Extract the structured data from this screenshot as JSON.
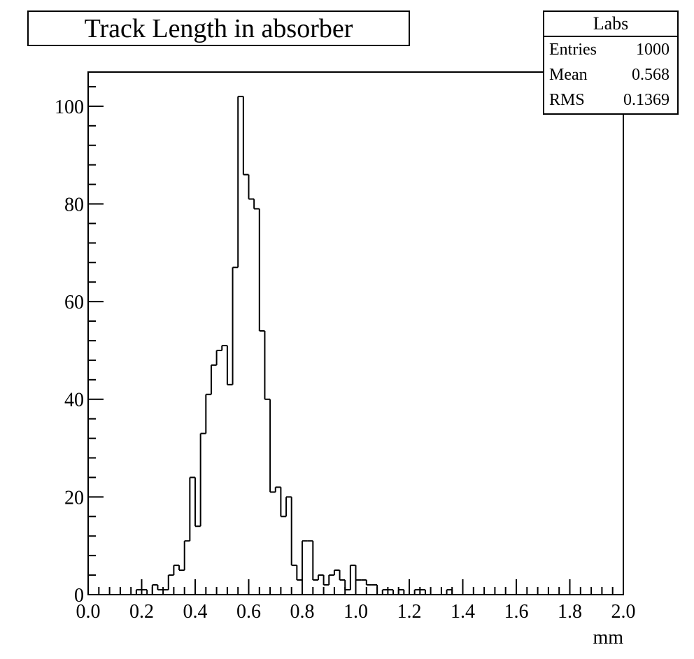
{
  "chart_data": {
    "type": "histogram",
    "title": "Track Length in absorber",
    "xlabel": "mm",
    "ylabel": "",
    "xlim": [
      0.0,
      2.0
    ],
    "ylim": [
      0,
      107
    ],
    "xticks": [
      "0.0",
      "0.2",
      "0.4",
      "0.6",
      "0.8",
      "1.0",
      "1.2",
      "1.4",
      "1.6",
      "1.8",
      "2.0"
    ],
    "yticks": [
      "0",
      "20",
      "40",
      "60",
      "80",
      "100"
    ],
    "bin_width": 0.02,
    "bin_start": 0.0,
    "values": [
      0,
      0,
      0,
      0,
      0,
      0,
      0,
      0,
      0,
      1,
      1,
      0,
      2,
      1,
      1,
      4,
      6,
      5,
      11,
      24,
      14,
      33,
      41,
      47,
      50,
      51,
      43,
      67,
      102,
      86,
      81,
      79,
      54,
      40,
      21,
      22,
      16,
      20,
      6,
      3,
      11,
      11,
      3,
      4,
      2,
      4,
      5,
      3,
      1,
      6,
      3,
      3,
      2,
      2,
      0,
      1,
      1,
      0,
      1,
      0,
      0,
      1,
      1,
      0,
      0,
      0,
      0,
      1,
      0,
      0,
      0,
      0,
      0,
      0,
      0,
      0,
      0,
      0,
      0,
      0,
      0,
      0,
      0,
      0,
      0,
      0,
      0,
      0,
      0,
      0,
      0,
      0,
      0,
      0,
      0,
      0,
      0,
      0,
      0,
      0
    ],
    "grid": false
  },
  "stats": {
    "name": "Labs",
    "rows": [
      {
        "label": "Entries",
        "value": "1000"
      },
      {
        "label": "Mean",
        "value": "0.568"
      },
      {
        "label": "RMS",
        "value": "0.1369"
      }
    ]
  },
  "colors": {
    "line": "#000000",
    "background": "#ffffff"
  }
}
